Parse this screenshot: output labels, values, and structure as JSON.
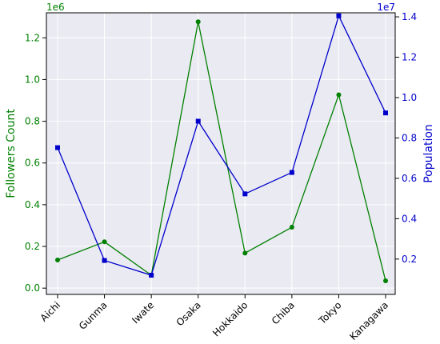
{
  "chart_data": {
    "type": "line",
    "categories": [
      "Aichi",
      "Gunma",
      "Iwate",
      "Osaka",
      "Hokkaido",
      "Chiba",
      "Tokyo",
      "Kanagawa"
    ],
    "series": [
      {
        "name": "",
        "axis": "left",
        "color": "#008000",
        "marker": "circle",
        "values": [
          135000,
          222000,
          62000,
          1277000,
          168000,
          292000,
          927000,
          35000
        ]
      },
      {
        "name": "",
        "axis": "right",
        "color": "#0000CD",
        "marker": "square",
        "values": [
          7520000,
          1930000,
          1200000,
          8830000,
          5230000,
          6290000,
          14050000,
          9240000
        ]
      }
    ],
    "ylabel_left": "Followers Count",
    "ylabel_right": "Population",
    "left_offset_label": "1e6",
    "right_offset_label": "1e7",
    "ylim_left": [
      -0.03,
      1.32
    ],
    "ylim_right": [
      0.025,
      1.42
    ],
    "left_ticks": [
      "0.0",
      "0.2",
      "0.4",
      "0.6",
      "0.8",
      "1.0",
      "1.2"
    ],
    "right_ticks": [
      "0.2",
      "0.4",
      "0.6",
      "0.8",
      "1.0",
      "1.2",
      "1.4"
    ],
    "left_axis_color": "#008000",
    "right_axis_color": "#0000CD",
    "plot_background": "#EAEAF2",
    "grid": true
  }
}
